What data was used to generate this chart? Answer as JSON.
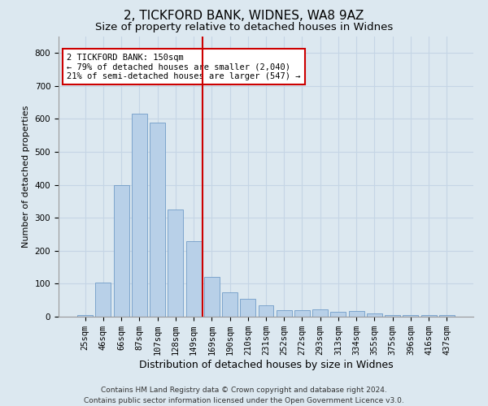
{
  "title1": "2, TICKFORD BANK, WIDNES, WA8 9AZ",
  "title2": "Size of property relative to detached houses in Widnes",
  "xlabel": "Distribution of detached houses by size in Widnes",
  "ylabel": "Number of detached properties",
  "categories": [
    "25sqm",
    "46sqm",
    "66sqm",
    "87sqm",
    "107sqm",
    "128sqm",
    "149sqm",
    "169sqm",
    "190sqm",
    "210sqm",
    "231sqm",
    "252sqm",
    "272sqm",
    "293sqm",
    "313sqm",
    "334sqm",
    "355sqm",
    "375sqm",
    "396sqm",
    "416sqm",
    "437sqm"
  ],
  "values": [
    5,
    103,
    400,
    615,
    590,
    325,
    230,
    120,
    75,
    55,
    35,
    20,
    20,
    22,
    15,
    18,
    10,
    5,
    5,
    5,
    5
  ],
  "bar_color": "#b8d0e8",
  "bar_edge_color": "#6090c0",
  "grid_color": "#c5d5e5",
  "background_color": "#dce8f0",
  "vline_color": "#cc0000",
  "vline_pos": 6.5,
  "annotation_text": "2 TICKFORD BANK: 150sqm\n← 79% of detached houses are smaller (2,040)\n21% of semi-detached houses are larger (547) →",
  "annotation_box_color": "#ffffff",
  "annotation_box_edge": "#cc0000",
  "ylim": [
    0,
    850
  ],
  "yticks": [
    0,
    100,
    200,
    300,
    400,
    500,
    600,
    700,
    800
  ],
  "footer1": "Contains HM Land Registry data © Crown copyright and database right 2024.",
  "footer2": "Contains public sector information licensed under the Open Government Licence v3.0.",
  "title1_fontsize": 11,
  "title2_fontsize": 9.5,
  "xlabel_fontsize": 9,
  "ylabel_fontsize": 8,
  "tick_fontsize": 7.5,
  "annotation_fontsize": 7.5,
  "footer_fontsize": 6.5
}
